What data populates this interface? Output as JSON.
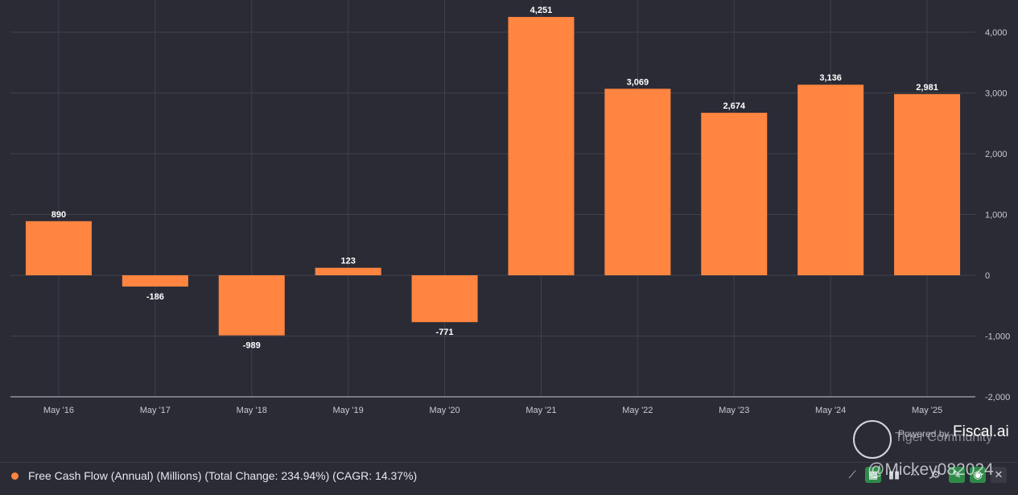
{
  "chart_data": {
    "type": "bar",
    "categories": [
      "May '16",
      "May '17",
      "May '18",
      "May '19",
      "May '20",
      "May '21",
      "May '22",
      "May '23",
      "May '24",
      "May '25"
    ],
    "values": [
      890,
      -186,
      -989,
      123,
      -771,
      4251,
      3069,
      2674,
      3136,
      2981
    ],
    "value_labels": [
      "890",
      "-186",
      "-989",
      "123",
      "-771",
      "4,251",
      "3,069",
      "2,674",
      "3,136",
      "2,981"
    ],
    "ylim": [
      -2000,
      4400
    ],
    "yticks": [
      4000,
      3000,
      2000,
      1000,
      0,
      -1000,
      -2000
    ],
    "ytick_labels": [
      "4,000",
      "3,000",
      "2,000",
      "1,000",
      "0",
      "-1,000",
      "-2,000"
    ],
    "y_axis_side": "right",
    "grid": true,
    "series_name": "Free Cash Flow (Annual) (Millions) (Total Change: 234.94%) (CAGR: 14.37%)",
    "colors": {
      "bar": "#ff8540",
      "background": "#2b2b35",
      "grid": "#41414c",
      "axis": "#9a9aa5"
    }
  },
  "legend": {
    "label": "Free Cash Flow (Annual) (Millions) (Total Change: 234.94%) (CAGR: 14.37%)",
    "color": "#ff8540"
  },
  "brand": {
    "powered": "Powered by",
    "name": "Fiscal.ai",
    "community": "Tiger Community"
  },
  "watermark": "@Mickey082024",
  "toolbar": {
    "more_label": "⋯"
  }
}
